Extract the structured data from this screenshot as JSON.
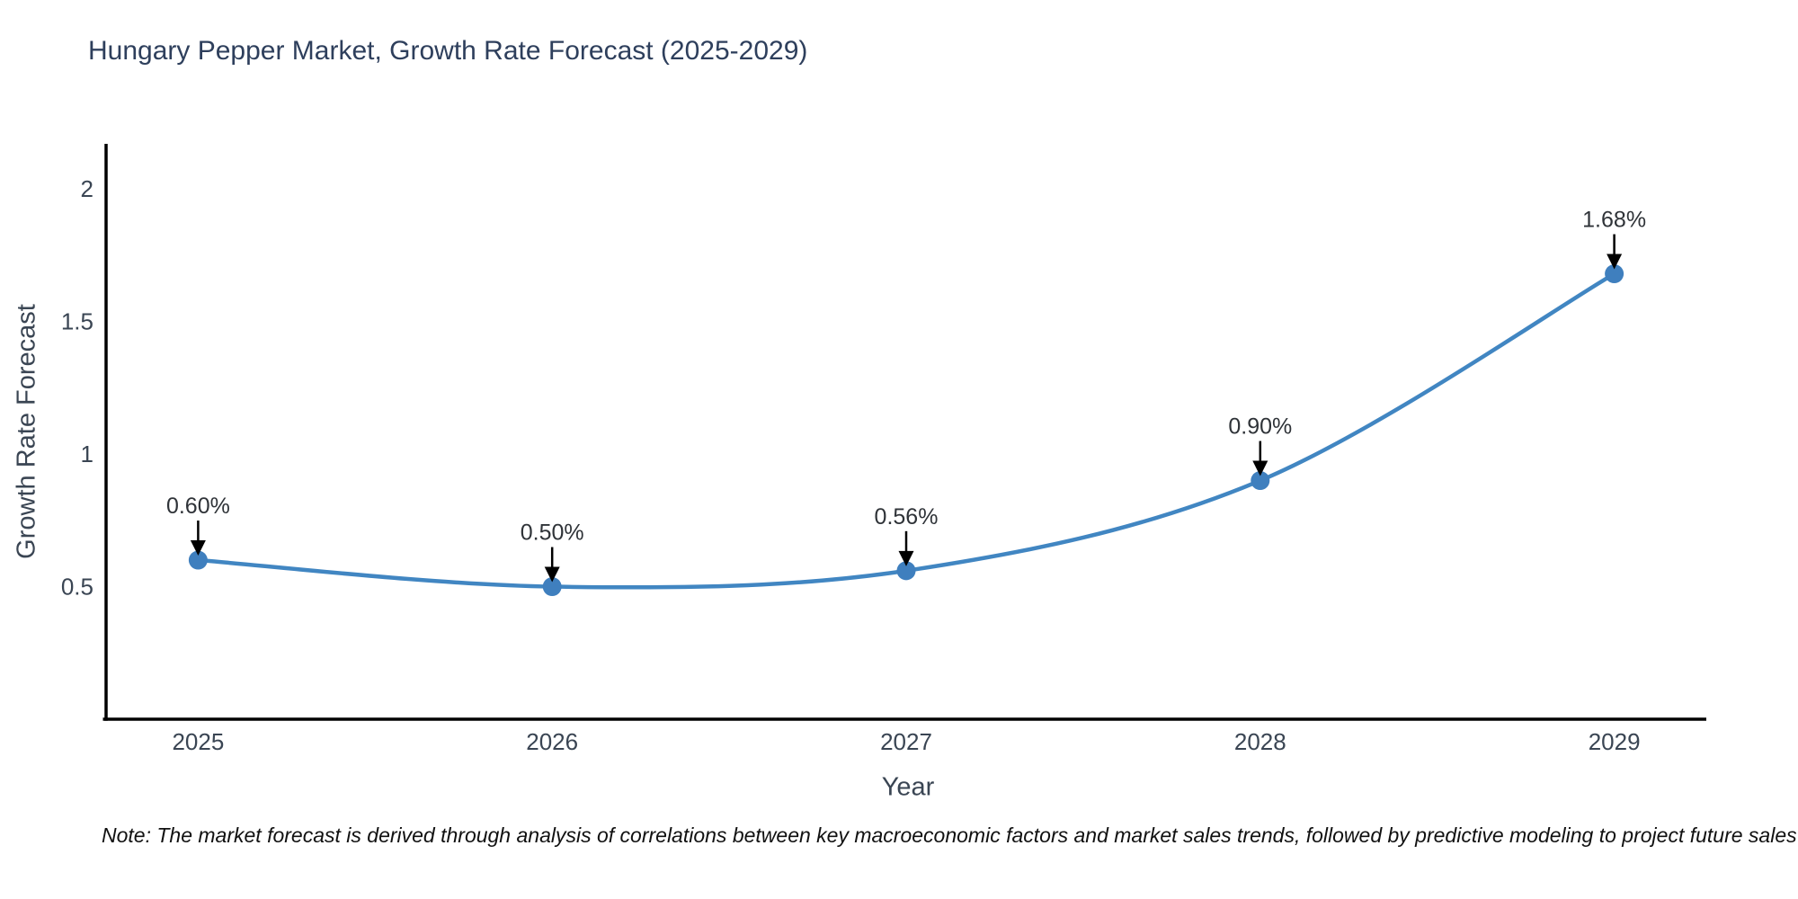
{
  "title": "Hungary Pepper Market, Growth Rate Forecast (2025-2029)",
  "note": "Note: The market forecast is derived through analysis of correlations between key macroeconomic factors and market sales trends, followed by predictive modeling to project future sales",
  "chart_data": {
    "type": "line",
    "line_shape": "spline",
    "title": "Hungary Pepper Market, Growth Rate Forecast (2025-2029)",
    "xlabel": "Year",
    "ylabel": "Growth Rate Forecast",
    "x": [
      2025,
      2026,
      2027,
      2028,
      2029
    ],
    "values": [
      0.6,
      0.5,
      0.56,
      0.9,
      1.68
    ],
    "point_labels": [
      "0.60%",
      "0.50%",
      "0.56%",
      "0.90%",
      "1.68%"
    ],
    "x_tick_labels": [
      "2025",
      "2026",
      "2027",
      "2028",
      "2029"
    ],
    "y_tick_values": [
      0.5,
      1,
      1.5,
      2
    ],
    "y_tick_labels": [
      "0.5",
      "1",
      "1.5",
      "2"
    ],
    "xlim": [
      2024.74,
      2029.26
    ],
    "ylim": [
      0,
      2.17
    ],
    "grid": false,
    "legend": "none",
    "colors": {
      "line": "#4186c2",
      "marker": "#3f7fbe",
      "axis": "#000000",
      "arrow": "#000000",
      "title_text": "#2e3f5c",
      "tick_text": "#3a4553",
      "annotation_text": "#2f3338"
    }
  }
}
